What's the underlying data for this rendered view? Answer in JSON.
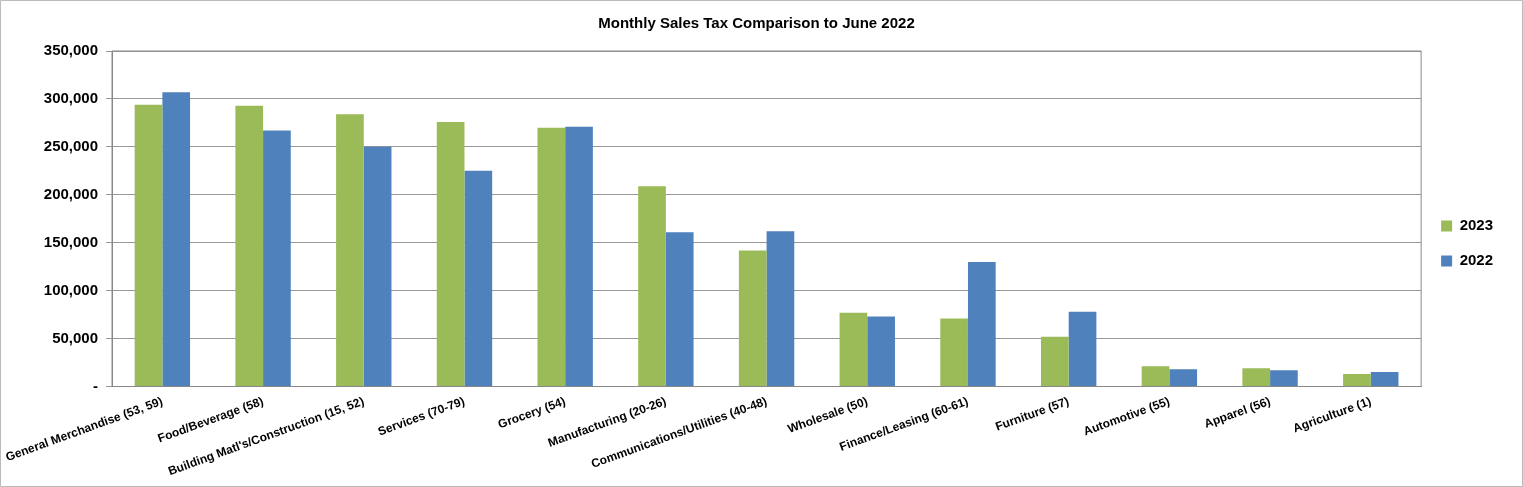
{
  "chart_data": {
    "type": "bar",
    "title": "Monthly Sales Tax Comparison to June 2022",
    "categories": [
      "General Merchandise (53, 59)",
      "Food/Beverage (58)",
      "Building Matl's/Construction (15, 52)",
      "Services (70-79)",
      "Grocery (54)",
      "Manufacturing (20-26)",
      "Communications/Utilities (40-48)",
      "Wholesale (50)",
      "Finance/Leasing (60-61)",
      "Furniture (57)",
      "Automotive (55)",
      "Apparel (56)",
      "Agriculture (1)"
    ],
    "series": [
      {
        "name": "2023",
        "color": "#9bbb59",
        "values": [
          294000,
          293000,
          284000,
          276000,
          270000,
          209000,
          142000,
          77000,
          71000,
          52000,
          21000,
          19000,
          13000
        ]
      },
      {
        "name": "2022",
        "color": "#4f81bd",
        "values": [
          307000,
          267000,
          250000,
          225000,
          271000,
          161000,
          162000,
          73000,
          130000,
          78000,
          18000,
          17000,
          15000
        ]
      }
    ],
    "ylim": [
      0,
      350000
    ],
    "yticks": [
      {
        "value": 0,
        "label": "-"
      },
      {
        "value": 50000,
        "label": "50,000"
      },
      {
        "value": 100000,
        "label": "100,000"
      },
      {
        "value": 150000,
        "label": "150,000"
      },
      {
        "value": 200000,
        "label": "200,000"
      },
      {
        "value": 250000,
        "label": "250,000"
      },
      {
        "value": 300000,
        "label": "300,000"
      },
      {
        "value": 350000,
        "label": "350,000"
      }
    ],
    "grid": "y",
    "legend": "right"
  }
}
